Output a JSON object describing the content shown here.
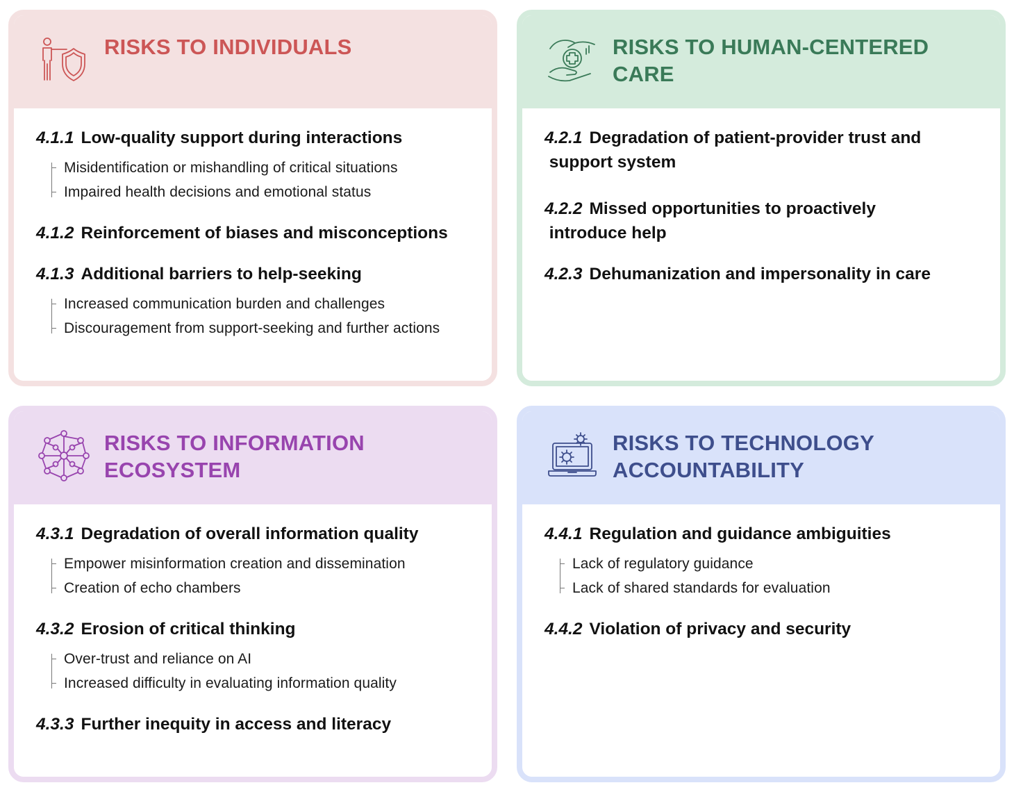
{
  "panels": [
    {
      "title": "RISKS TO INDIVIDUALS",
      "icon": "person-shield-icon",
      "accent": "#cc5656",
      "header_bg": "#f4e1e1",
      "items": [
        {
          "num": "4.1.1",
          "title": "Low-quality support during interactions",
          "subs": [
            "Misidentification or mishandling of critical situations",
            "Impaired health decisions and emotional status"
          ]
        },
        {
          "num": "4.1.2",
          "title": "Reinforcement of biases and misconceptions",
          "subs": []
        },
        {
          "num": "4.1.3",
          "title": "Additional barriers to help-seeking",
          "subs": [
            "Increased communication burden and challenges",
            "Discouragement from support-seeking and further actions"
          ]
        }
      ]
    },
    {
      "title": "RISKS TO HUMAN-CENTERED CARE",
      "icon": "caring-hands-medical-icon",
      "accent": "#3a7a58",
      "header_bg": "#d4ebdc",
      "items": [
        {
          "num": "4.2.1",
          "title": "Degradation of patient-provider trust and\n support system",
          "subs": []
        },
        {
          "num": "4.2.2",
          "title": "Missed opportunities to proactively\n introduce help",
          "subs": []
        },
        {
          "num": "4.2.3",
          "title": "Dehumanization and impersonality in care",
          "subs": []
        }
      ]
    },
    {
      "title": "RISKS TO INFORMATION ECOSYSTEM",
      "icon": "network-globe-icon",
      "accent": "#9844ae",
      "header_bg": "#ecdcf1",
      "items": [
        {
          "num": "4.3.1",
          "title": "Degradation of overall information quality",
          "subs": [
            "Empower misinformation creation and dissemination",
            "Creation of echo chambers"
          ]
        },
        {
          "num": "4.3.2",
          "title": "Erosion of critical thinking",
          "subs": [
            "Over-trust and reliance on AI",
            "Increased difficulty in evaluating information quality"
          ]
        },
        {
          "num": "4.3.3",
          "title": "Further inequity in access and literacy",
          "subs": []
        }
      ]
    },
    {
      "title": "RISKS TO TECHNOLOGY ACCOUNTABILITY",
      "icon": "laptop-gears-icon",
      "accent": "#3e4e8c",
      "header_bg": "#d9e2fa",
      "items": [
        {
          "num": "4.4.1",
          "title": "Regulation and guidance ambiguities",
          "subs": [
            "Lack of regulatory guidance",
            "Lack of shared standards for evaluation"
          ]
        },
        {
          "num": "4.4.2",
          "title": "Violation of privacy and security",
          "subs": []
        }
      ]
    }
  ]
}
